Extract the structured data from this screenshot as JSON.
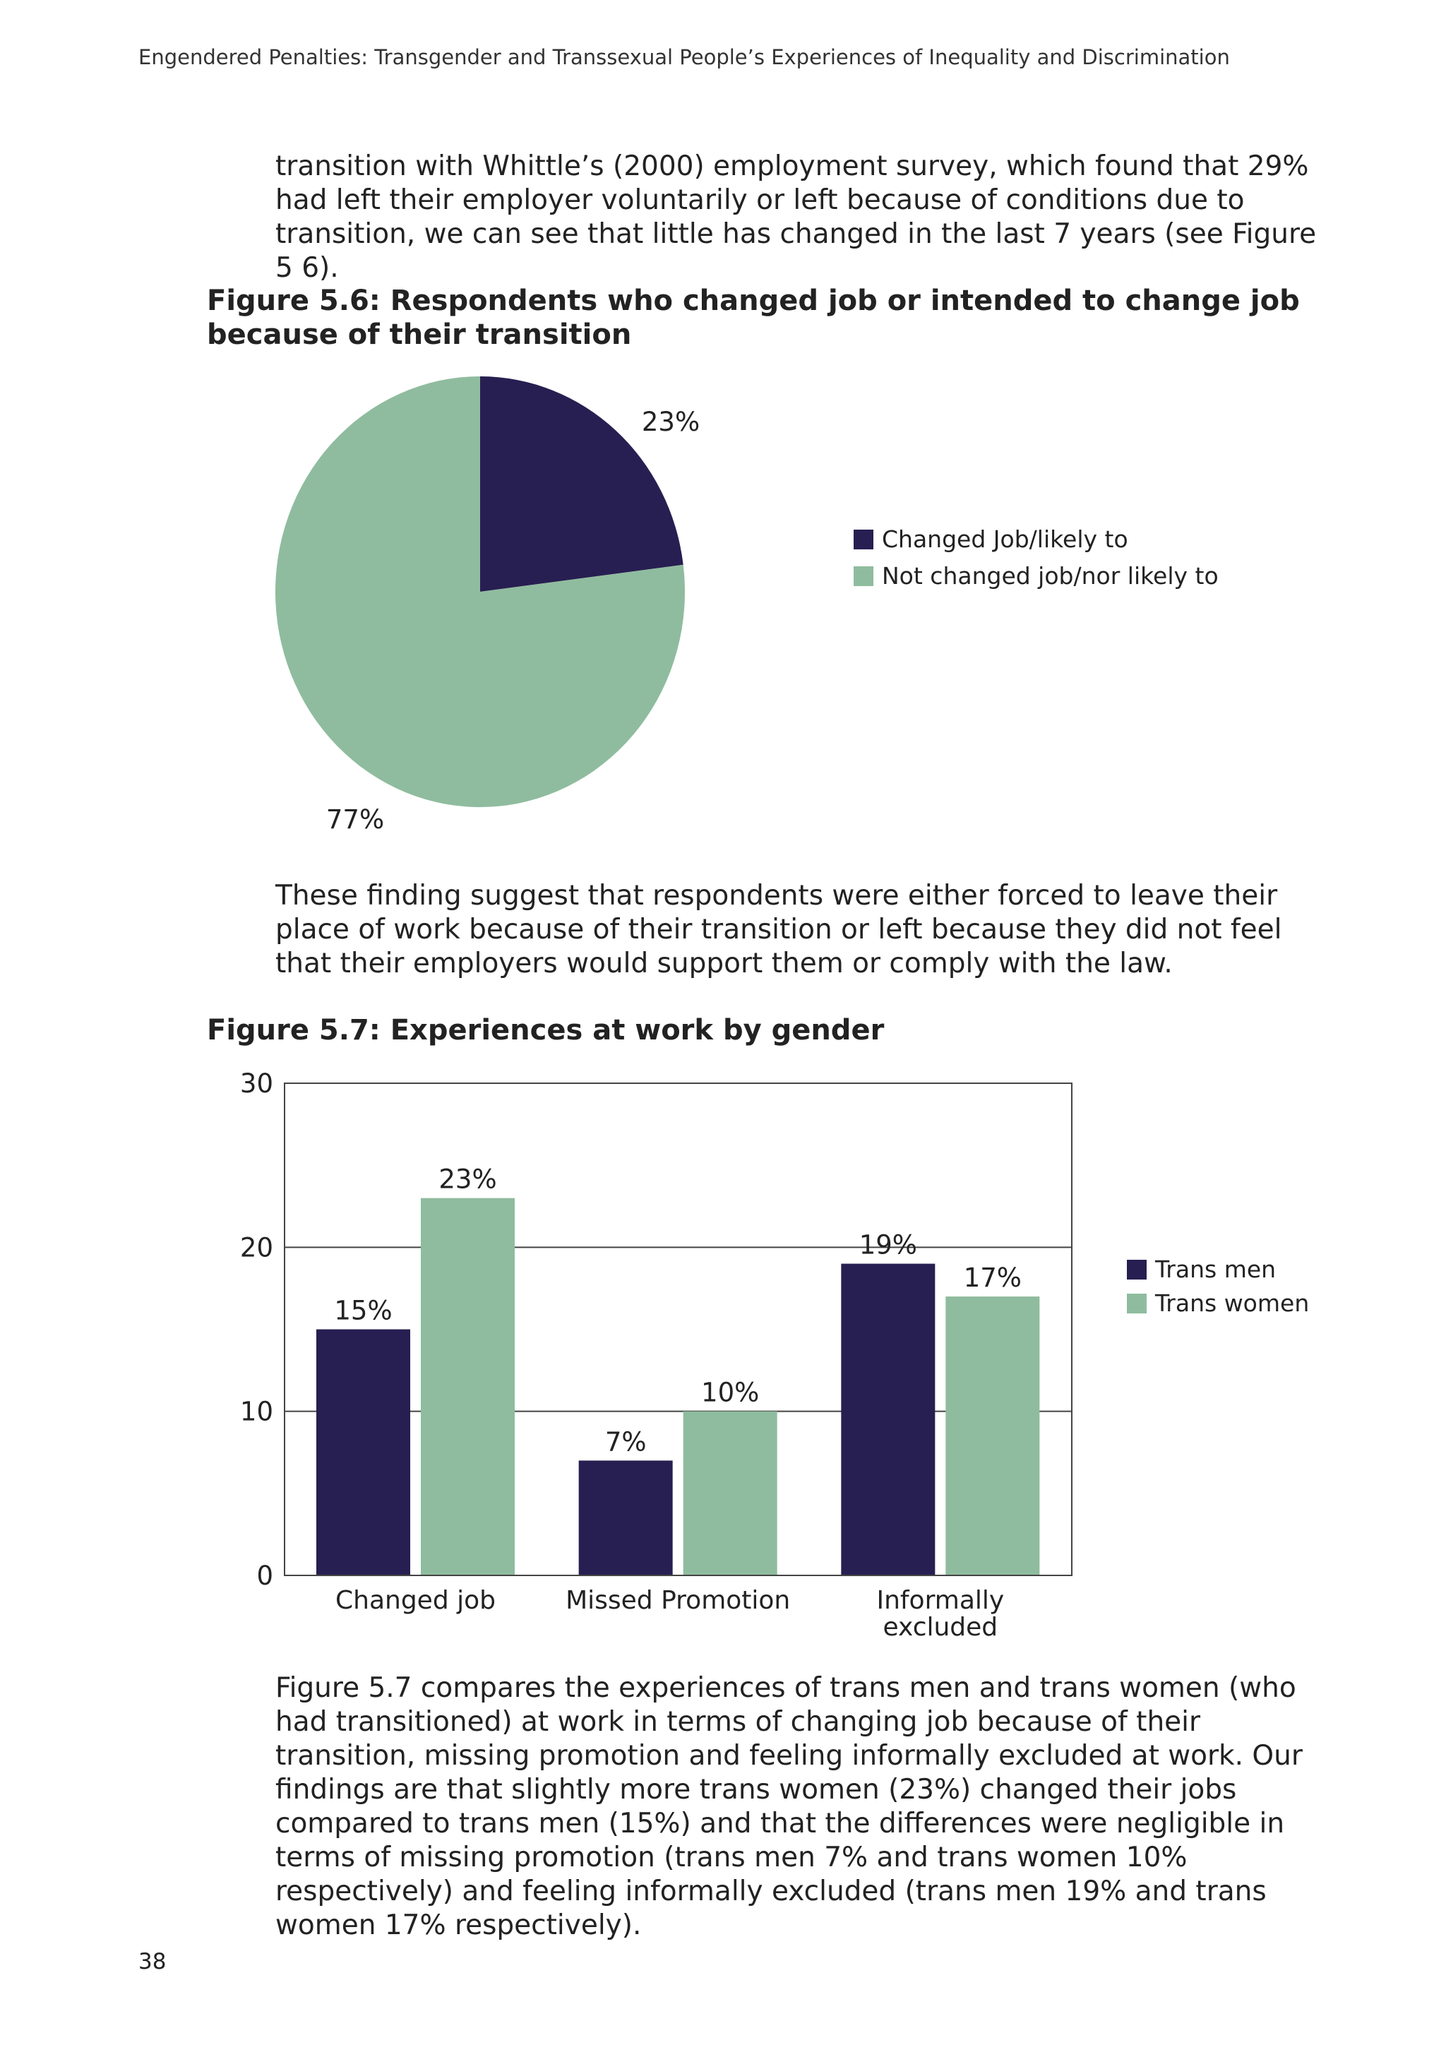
{
  "header": {
    "running_title": "Engendered Penalties: Transgender and Transsexual People’s Experiences of Inequality and Discrimination"
  },
  "body": {
    "para1": "transition with Whittle’s (2000) employment survey, which found that 29% had left their employer voluntarily or left because of conditions due to transition, we can see that little has changed in the last 7 years (see Figure 5 6).",
    "para2": "These finding suggest that respondents were either forced to leave their place of work because of their transition or left because they did not feel that their employers would support them or comply with the law.",
    "para3": "Figure 5.7 compares the experiences of trans men and trans women (who had transitioned) at work in terms of changing job because of their transition, missing promotion and feeling informally excluded at work. Our findings are that slightly more trans women (23%) changed their jobs compared to trans men (15%) and that the differences were negligible in terms of missing promotion (trans men 7% and trans women 10% respectively) and feeling informally excluded (trans men 19% and trans women 17% respectively)."
  },
  "footer": {
    "page_number": "38"
  },
  "colors": {
    "dark": "#271f51",
    "green": "#8fbc9e",
    "axis": "#444444"
  },
  "chart_data": [
    {
      "type": "pie",
      "title": "Figure 5.6: Respondents who changed job or intended to change job because of their transition",
      "slices": [
        {
          "label": "Changed Job/likely to",
          "value": 23,
          "display": "23%"
        },
        {
          "label": "Not changed job/nor likely to",
          "value": 77,
          "display": "77%"
        }
      ],
      "legend_position": "right"
    },
    {
      "type": "bar",
      "title": "Figure 5.7: Experiences at work by gender",
      "categories": [
        "Changed job",
        "Missed Promotion",
        "Informally excluded"
      ],
      "series": [
        {
          "name": "Trans men",
          "values": [
            15,
            7,
            19
          ],
          "labels": [
            "15%",
            "7%",
            "19%"
          ]
        },
        {
          "name": "Trans women",
          "values": [
            23,
            10,
            17
          ],
          "labels": [
            "23%",
            "10%",
            "17%"
          ]
        }
      ],
      "ylim": [
        0,
        30
      ],
      "yticks": [
        0,
        10,
        20,
        30
      ],
      "grid": true,
      "xlabel": "",
      "ylabel": "",
      "legend_position": "right"
    }
  ]
}
